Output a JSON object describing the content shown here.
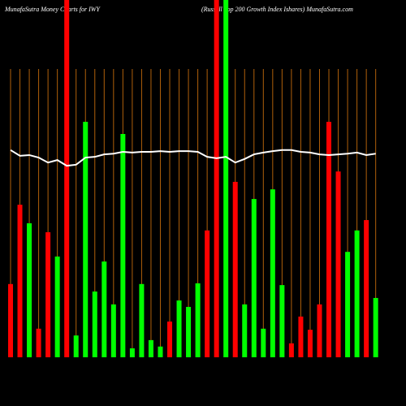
{
  "chart_data": {
    "type": "bar",
    "title": "MunafaSutra  Money  Charts for IWY",
    "subtitle": "(Russell Top 200  Growth Index Ishares) MunafaSutra.com",
    "ylim": [
      0,
      100
    ],
    "series": [
      {
        "type": "bar",
        "values": [
          20.5,
          42.7,
          37.5,
          8,
          35,
          28.2,
          100,
          6.1,
          65.9,
          18.4,
          26.8,
          14.8,
          62.5,
          2.5,
          20.5,
          4.8,
          3,
          10,
          15.9,
          14.1,
          20.7,
          35.5,
          100,
          100,
          49.1,
          14.8,
          44.3,
          8,
          47,
          20.2,
          3.9,
          11.4,
          7.7,
          14.8,
          65.9,
          52,
          29.5,
          35.5,
          38.4,
          16.6
        ],
        "colors": [
          "#ff0000",
          "#ff0000",
          "#00ff00",
          "#ff0000",
          "#ff0000",
          "#00ff00",
          "#ff0000",
          "#00ff00",
          "#00ff00",
          "#00ff00",
          "#00ff00",
          "#00ff00",
          "#00ff00",
          "#00ff00",
          "#00ff00",
          "#00ff00",
          "#00ff00",
          "#ff0000",
          "#00ff00",
          "#00ff00",
          "#00ff00",
          "#ff0000",
          "#ff0000",
          "#00ff00",
          "#ff0000",
          "#00ff00",
          "#00ff00",
          "#00ff00",
          "#00ff00",
          "#00ff00",
          "#ff0000",
          "#ff0000",
          "#ff0000",
          "#ff0000",
          "#ff0000",
          "#ff0000",
          "#00ff00",
          "#00ff00",
          "#ff0000",
          "#00ff00"
        ]
      },
      {
        "type": "line",
        "color": "#ffffff",
        "values": [
          58,
          56.4,
          56.6,
          55.9,
          54.5,
          55.2,
          53.6,
          53.9,
          55.9,
          56.1,
          56.8,
          57,
          57.5,
          57.3,
          57.5,
          57.5,
          57.7,
          57.5,
          57.7,
          57.7,
          57.5,
          56.1,
          55.7,
          56.1,
          54.5,
          55.5,
          56.8,
          57.3,
          57.7,
          58,
          58,
          57.5,
          57.3,
          56.8,
          56.6,
          56.8,
          57,
          57.3,
          56.6,
          57
        ]
      }
    ]
  }
}
